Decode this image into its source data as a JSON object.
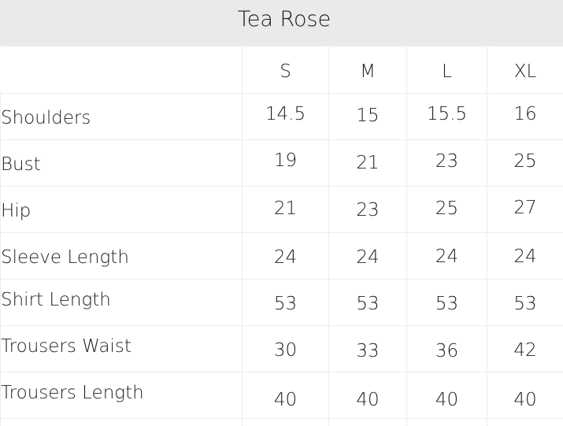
{
  "title": "Tea Rose",
  "sizes": [
    "S",
    "M",
    "L",
    "XL"
  ],
  "rows": [
    {
      "label": "Shoulders",
      "values": [
        "14.5",
        "15",
        "15.5",
        "16"
      ]
    },
    {
      "label": "Bust",
      "values": [
        "19",
        "21",
        "23",
        "25"
      ]
    },
    {
      "label": "Hip",
      "values": [
        "21",
        "23",
        "25",
        "27"
      ]
    },
    {
      "label": "Sleeve Length",
      "values": [
        "24",
        "24",
        "24",
        "24"
      ]
    },
    {
      "label": "Shirt Length",
      "values": [
        "53",
        "53",
        "53",
        "53"
      ]
    },
    {
      "label": "Trousers Waist",
      "values": [
        "30",
        "33",
        "36",
        "42"
      ]
    },
    {
      "label": "Trousers Length",
      "values": [
        "40",
        "40",
        "40",
        "40"
      ]
    }
  ]
}
